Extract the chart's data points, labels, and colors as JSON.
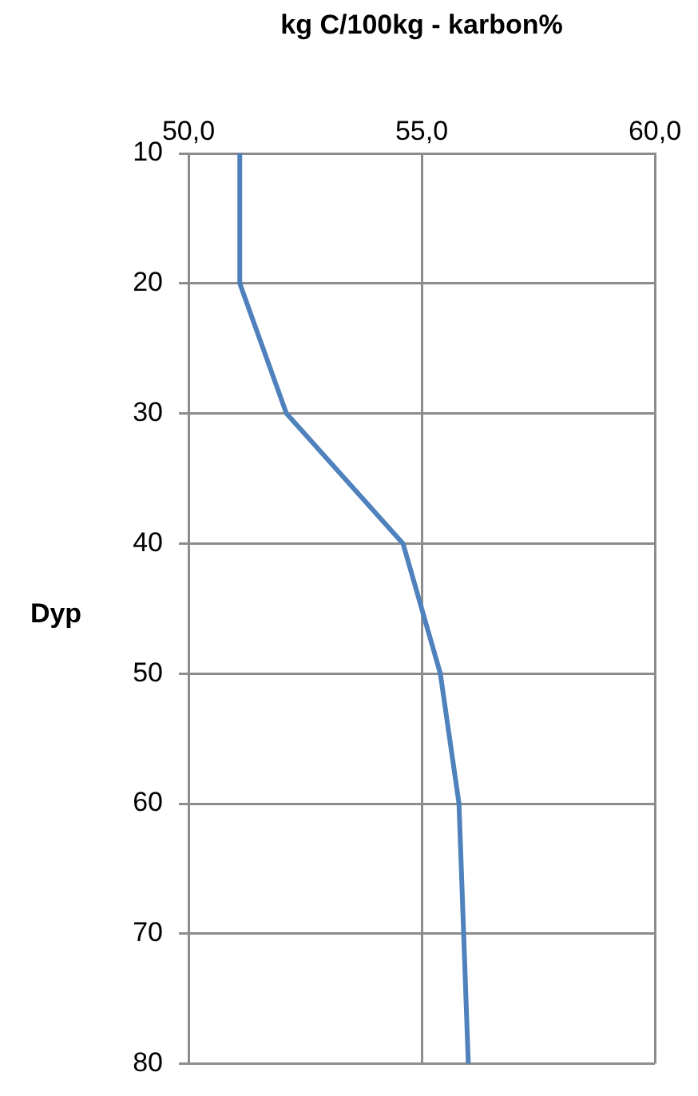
{
  "chart_data": {
    "type": "line",
    "xlabel": "kg C/100kg - karbon%",
    "ylabel": "Dyp",
    "series": [
      {
        "color": "#4f81bd",
        "x": [
          51.1,
          51.1,
          52.1,
          54.6,
          55.4,
          55.8,
          55.9,
          56.0
        ],
        "values": [
          10,
          20,
          30,
          40,
          50,
          60,
          70,
          80
        ]
      }
    ],
    "xlim": [
      50,
      60
    ],
    "xticks": [
      {
        "value": 50,
        "label": "50,0"
      },
      {
        "value": 55,
        "label": "55,0"
      },
      {
        "value": 60,
        "label": "60,0"
      }
    ],
    "ylim": [
      80,
      10
    ],
    "yticks": [
      10,
      20,
      30,
      40,
      50,
      60,
      70,
      80
    ],
    "grid": true,
    "marker": "none",
    "line_style": "solid"
  }
}
